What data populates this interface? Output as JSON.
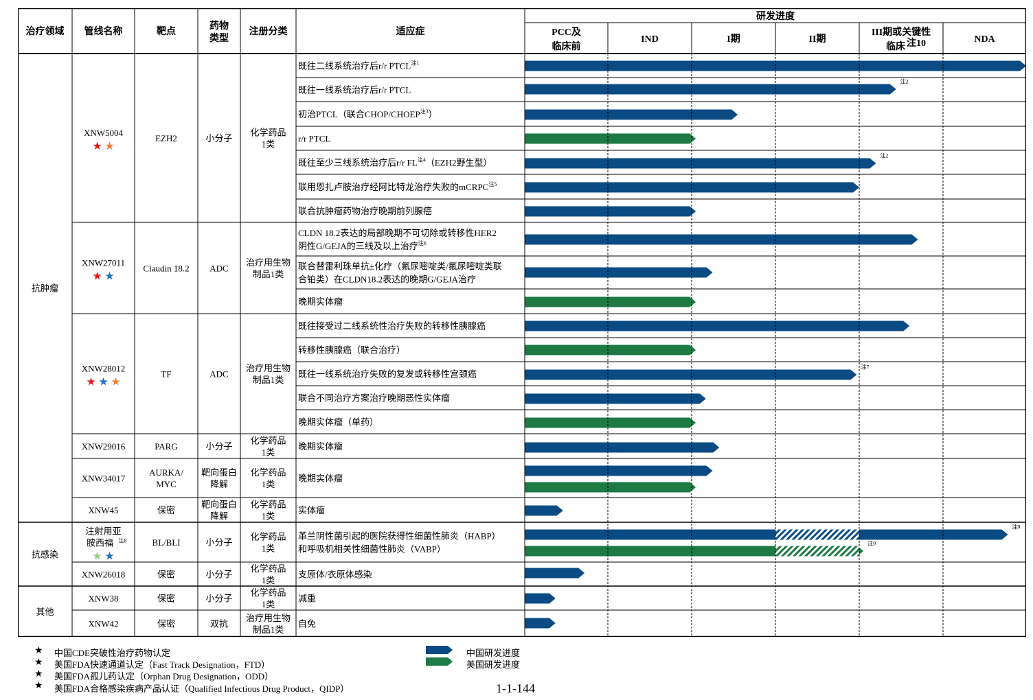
{
  "header": {
    "area": "治疗领域",
    "pipeline": "管线名称",
    "target": "靶点",
    "drug_type": [
      "药物",
      "类型"
    ],
    "registration": "注册分类",
    "indication": "适应症",
    "progress": "研发进度",
    "stages": [
      {
        "lines": [
          "PCC及",
          "临床前"
        ]
      },
      {
        "lines": [
          "IND"
        ]
      },
      {
        "lines": [
          "I期"
        ]
      },
      {
        "lines": [
          "II期"
        ]
      },
      {
        "lines": [
          "III期或关键性",
          "临床"
        ],
        "note": "注10"
      },
      {
        "lines": [
          "NDA"
        ]
      }
    ]
  },
  "areas": [
    {
      "label": "抗肿瘤"
    },
    {
      "label": "抗感染"
    },
    {
      "label": "其他"
    }
  ],
  "pipelines": [
    {
      "name": [
        "XNW5004"
      ],
      "stars": [
        "red",
        "orange"
      ],
      "target": [
        "EZH2"
      ],
      "type": [
        "小分子"
      ],
      "registration": [
        "化学药品",
        "1类"
      ]
    },
    {
      "name": [
        "XNW27011"
      ],
      "stars": [
        "red",
        "blue"
      ],
      "target": [
        "Claudin 18.2"
      ],
      "type": [
        "ADC"
      ],
      "registration": [
        "治疗用生物",
        "制品1类"
      ]
    },
    {
      "name": [
        "XNW28012"
      ],
      "stars": [
        "red",
        "blue",
        "orange"
      ],
      "target": [
        "TF"
      ],
      "type": [
        "ADC"
      ],
      "registration": [
        "治疗用生物",
        "制品1类"
      ]
    },
    {
      "name": [
        "XNW29016"
      ],
      "stars": [],
      "target": [
        "PARG"
      ],
      "type": [
        "小分子"
      ],
      "registration": [
        "化学药品",
        "1类"
      ]
    },
    {
      "name": [
        "XNW34017"
      ],
      "stars": [],
      "target": [
        "AURKA/",
        "MYC"
      ],
      "type": [
        "靶向蛋白",
        "降解"
      ],
      "registration": [
        "化学药品",
        "1类"
      ]
    },
    {
      "name": [
        "XNW45"
      ],
      "stars": [],
      "target": [
        "保密"
      ],
      "type": [
        "靶向蛋白",
        "降解"
      ],
      "registration": [
        "化学药品",
        "1类"
      ]
    },
    {
      "name": [
        "注射用亚",
        "胺西福"
      ],
      "name_note": "注8",
      "stars": [
        "lightgreen",
        "blue"
      ],
      "target": [
        "BL/BLI"
      ],
      "type": [
        "小分子"
      ],
      "registration": [
        "化学药品",
        "1类"
      ]
    },
    {
      "name": [
        "XNW26018"
      ],
      "stars": [],
      "target": [
        "保密"
      ],
      "type": [
        "小分子"
      ],
      "registration": [
        "化学药品",
        "1类"
      ]
    },
    {
      "name": [
        "XNW38"
      ],
      "stars": [],
      "target": [
        "保密"
      ],
      "type": [
        "小分子"
      ],
      "registration": [
        "化学药品",
        "1类"
      ]
    },
    {
      "name": [
        "XNW42"
      ],
      "stars": [],
      "target": [
        "保密"
      ],
      "type": [
        "双抗"
      ],
      "registration": [
        "治疗用生物",
        "制品1类"
      ]
    }
  ],
  "indications": [
    {
      "parts": [
        {
          "t": "既往二线系统治疗后r/r PTCL"
        },
        {
          "t": "注1",
          "sup": true
        }
      ]
    },
    {
      "parts": [
        {
          "t": "既往一线系统治疗后r/r PTCL"
        }
      ]
    },
    {
      "parts": [
        {
          "t": "初治PTCL（联合CHOP/CHOEP"
        },
        {
          "t": "注3",
          "sup": true
        },
        {
          "t": "）"
        }
      ]
    },
    {
      "parts": [
        {
          "t": "r/r PTCL"
        }
      ]
    },
    {
      "parts": [
        {
          "t": "既往至少三线系统治疗后r/r FL"
        },
        {
          "t": "注4",
          "sup": true
        },
        {
          "t": "（EZH2野生型）"
        }
      ]
    },
    {
      "parts": [
        {
          "t": "联用恩扎卢胺治疗经阿比特龙治疗失败的mCRPC"
        },
        {
          "t": "注5",
          "sup": true
        }
      ]
    },
    {
      "parts": [
        {
          "t": "联合抗肿瘤药物治疗晚期前列腺癌"
        }
      ]
    },
    {
      "lines": [
        [
          {
            "t": "CLDN 18.2表达的局部晚期不可切除或转移性HER2"
          }
        ],
        [
          {
            "t": "阴性G/GEJA的三线及以上治疗"
          },
          {
            "t": "注6",
            "sup": true
          }
        ]
      ]
    },
    {
      "lines": [
        [
          {
            "t": "联合替雷利珠单抗±化疗（氟尿嘧啶类/氟尿嘧啶类联"
          }
        ],
        [
          {
            "t": "合铂类）在CLDN18.2表达的晚期G/GEJA治疗"
          }
        ]
      ]
    },
    {
      "parts": [
        {
          "t": "晚期实体瘤"
        }
      ]
    },
    {
      "parts": [
        {
          "t": "既往接受过二线系统性治疗失败的转移性胰腺癌"
        }
      ]
    },
    {
      "parts": [
        {
          "t": "转移性胰腺癌（联合治疗）"
        }
      ]
    },
    {
      "parts": [
        {
          "t": "既往一线系统治疗失败的复发或转移性宫颈癌"
        }
      ]
    },
    {
      "parts": [
        {
          "t": "联合不同治疗方案治疗晚期恶性实体瘤"
        }
      ]
    },
    {
      "parts": [
        {
          "t": "晚期实体瘤（单药）"
        }
      ]
    },
    {
      "parts": [
        {
          "t": "晚期实体瘤"
        }
      ]
    },
    {
      "parts": [
        {
          "t": "晚期实体瘤"
        }
      ]
    },
    {
      "parts": [
        {
          "t": "实体瘤"
        }
      ]
    },
    {
      "lines": [
        [
          {
            "t": "革兰阴性菌引起的医院获得性细菌性肺炎（HABP）"
          }
        ],
        [
          {
            "t": "和呼吸机相关性细菌性肺炎（VABP）"
          }
        ]
      ]
    },
    {
      "parts": [
        {
          "t": "支原体/衣原体感染"
        }
      ]
    },
    {
      "parts": [
        {
          "t": "减重"
        }
      ]
    },
    {
      "parts": [
        {
          "t": "自免"
        }
      ]
    }
  ],
  "progress_bars": [
    {
      "region": "China",
      "end_stage": 6.0
    },
    {
      "region": "China",
      "end_stage": 4.44,
      "note": "注2"
    },
    {
      "region": "China",
      "end_stage": 2.55
    },
    {
      "region": "US",
      "end_stage": 2.05
    },
    {
      "region": "China",
      "end_stage": 4.2,
      "note": "注2"
    },
    {
      "region": "China",
      "end_stage": 4.0
    },
    {
      "region": "China",
      "end_stage": 2.05
    },
    {
      "region": "China",
      "end_stage": 4.7
    },
    {
      "region": "China",
      "end_stage": 2.25
    },
    {
      "region": "US",
      "end_stage": 2.05
    },
    {
      "region": "China",
      "end_stage": 4.6
    },
    {
      "region": "US",
      "end_stage": 2.05
    },
    {
      "region": "China",
      "end_stage": 3.97,
      "note": "注7"
    },
    {
      "region": "China",
      "end_stage": 2.17
    },
    {
      "region": "US",
      "end_stage": 2.05
    },
    {
      "region": "China",
      "end_stage": 2.33
    },
    {
      "region": "China",
      "end_stage": 2.25
    },
    {
      "region": "US",
      "end_stage": 2.05
    },
    {
      "region": "China",
      "end_stage": 0.46
    },
    {
      "region": "China",
      "end_stage": 5.78,
      "hatch_from": 3.0,
      "hatch_to": 4.0,
      "note": "注9"
    },
    {
      "region": "US",
      "end_stage": 4.05,
      "hatch_from": 3.0,
      "hatch_to": 4.0,
      "note": "注9"
    },
    {
      "region": "China",
      "end_stage": 0.72
    },
    {
      "region": "China",
      "end_stage": 0.37
    },
    {
      "region": "China",
      "end_stage": 0.37
    }
  ],
  "legend": {
    "stars": [
      {
        "color": "red",
        "text": "中国CDE突破性治疗药物认定"
      },
      {
        "color": "blue",
        "text": "美国FDA快速通道认定（Fast Track Designation，FTD）"
      },
      {
        "color": "orange",
        "text": "美国FDA孤儿药认定（Orphan Drug Designation，ODD）"
      },
      {
        "color": "lightgreen",
        "text": "美国FDA合格感染疾病产品认证（Qualified Infectious Drug Product，QIDP）"
      }
    ],
    "china_progress": "中国研发进度",
    "us_progress": "美国研发进度"
  },
  "colors": {
    "china": "#0b4b84",
    "us": "#1e7a45",
    "red_star": "#e8191d",
    "blue_star": "#1a6fbf",
    "orange_star": "#ee7f33",
    "lightgreen_star": "#9ccc8c"
  },
  "page_number": "1-1-144"
}
